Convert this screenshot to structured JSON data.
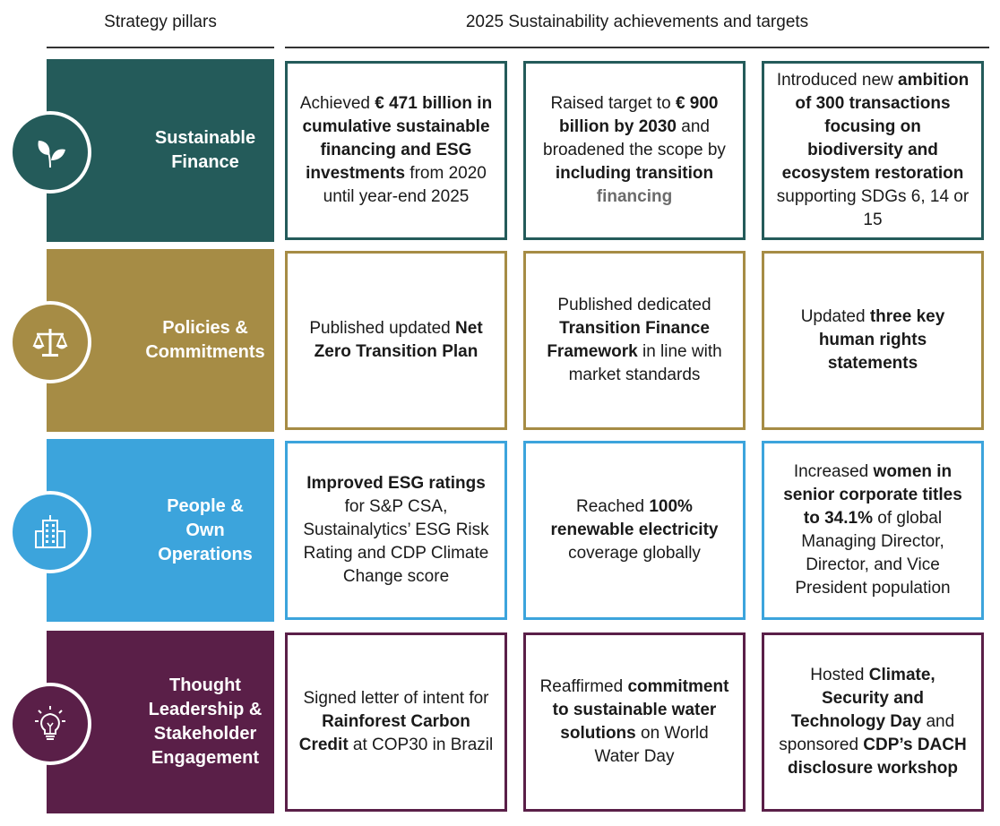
{
  "header": {
    "left": "Strategy pillars",
    "right": "2025 Sustainability achievements and targets"
  },
  "colors": {
    "sustainable_finance": "#245b5a",
    "policies": "#a68c45",
    "people": "#3ca4dc",
    "thought": "#5a1f48"
  },
  "rows": [
    {
      "pillar": "Sustainable\nFinance",
      "icon": "leaf-icon",
      "cells": [
        [
          {
            "t": "Achieved "
          },
          {
            "t": "€ 471 billion in cumulative sustainable financing and ESG investments",
            "b": true
          },
          {
            "t": " from 2020 until year-end 2025"
          }
        ],
        [
          {
            "t": "Raised target to "
          },
          {
            "t": "€ 900 billion by 2030",
            "b": true
          },
          {
            "t": " and broadened the scope by "
          },
          {
            "t": "including transition",
            "b": true
          },
          {
            "t": " "
          },
          {
            "t": "financing",
            "m": true
          }
        ],
        [
          {
            "t": "Introduced new "
          },
          {
            "t": "ambition of 300 transactions focusing on biodiversity and ecosystem restoration",
            "b": true
          },
          {
            "t": " supporting SDGs 6, 14 or 15"
          }
        ]
      ]
    },
    {
      "pillar": "Policies &\nCommitments",
      "icon": "scales-icon",
      "cells": [
        [
          {
            "t": "Published updated "
          },
          {
            "t": "Net Zero Transition Plan",
            "b": true
          }
        ],
        [
          {
            "t": "Published dedicated "
          },
          {
            "t": "Transition Finance Framework",
            "b": true
          },
          {
            "t": " in line with market standards"
          }
        ],
        [
          {
            "t": "Updated "
          },
          {
            "t": "three key human rights statements",
            "b": true
          }
        ]
      ]
    },
    {
      "pillar": "People &\nOwn Operations",
      "icon": "building-icon",
      "cells": [
        [
          {
            "t": "Improved ESG ratings",
            "b": true
          },
          {
            "t": " for S&P CSA, Sustainalytics’ ESG Risk Rating and CDP Climate Change score"
          }
        ],
        [
          {
            "t": "Reached "
          },
          {
            "t": "100% renewable electricity",
            "b": true
          },
          {
            "t": " coverage globally"
          }
        ],
        [
          {
            "t": "Increased "
          },
          {
            "t": "women in senior corporate titles to 34.1%",
            "b": true
          },
          {
            "t": " of global Managing Director, Director, and Vice President population"
          }
        ]
      ]
    },
    {
      "pillar": "Thought\nLeadership &\nStakeholder\nEngagement",
      "icon": "lightbulb-icon",
      "cells": [
        [
          {
            "t": "Signed letter of intent for "
          },
          {
            "t": "Rainforest Carbon Credit",
            "b": true
          },
          {
            "t": " at COP30 in Brazil"
          }
        ],
        [
          {
            "t": "Reaffirmed "
          },
          {
            "t": "commitment to sustainable water solutions",
            "b": true
          },
          {
            "t": " on World Water Day"
          }
        ],
        [
          {
            "t": "Hosted "
          },
          {
            "t": "Climate, Security and Technology Day",
            "b": true
          },
          {
            "t": " and sponsored "
          },
          {
            "t": "CDP’s DACH disclosure workshop",
            "b": true
          }
        ]
      ]
    }
  ]
}
